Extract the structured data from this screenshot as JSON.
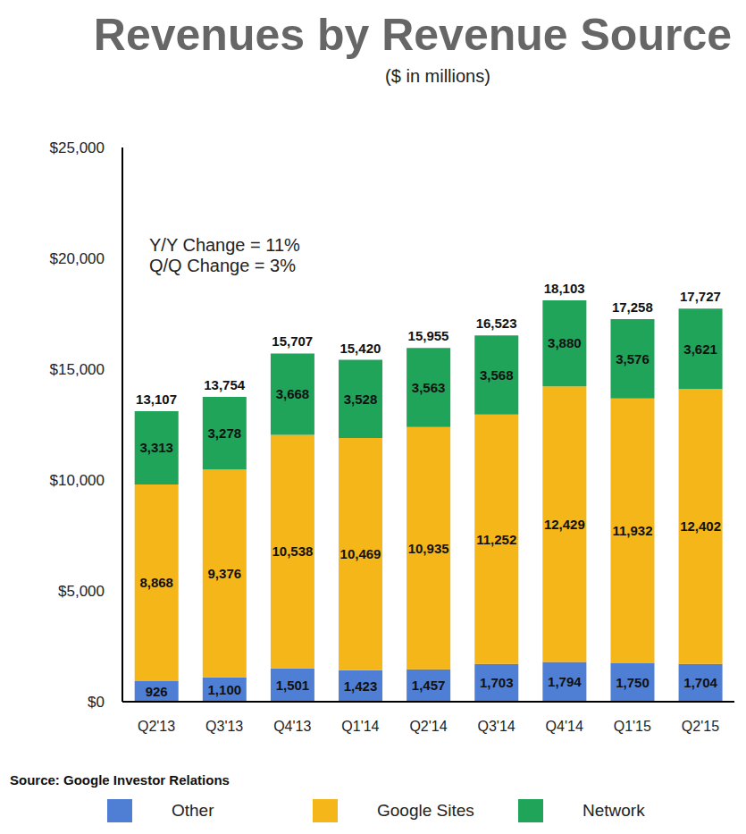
{
  "chart_data": {
    "type": "bar",
    "title": "Revenues by Revenue Source",
    "subtitle": "($ in millions)",
    "annotations": [
      "Y/Y Change = 11%",
      "Q/Q Change = 3%"
    ],
    "source": "Source: Google Investor Relations",
    "categories": [
      "Q2'13",
      "Q3'13",
      "Q4'13",
      "Q1'14",
      "Q2'14",
      "Q3'14",
      "Q4'14",
      "Q1'15",
      "Q2'15"
    ],
    "series": [
      {
        "name": "Other",
        "color": "#4f7fd4",
        "values": [
          926,
          1100,
          1501,
          1423,
          1457,
          1703,
          1794,
          1750,
          1704
        ],
        "value_labels": [
          "926",
          "1,100",
          "1,501",
          "1,423",
          "1,457",
          "1,703",
          "1,794",
          "1,750",
          "1,704"
        ]
      },
      {
        "name": "Google Sites",
        "color": "#f5b619",
        "values": [
          8868,
          9376,
          10538,
          10469,
          10935,
          11252,
          12429,
          11932,
          12402
        ],
        "value_labels": [
          "8,868",
          "9,376",
          "10,538",
          "10,469",
          "10,935",
          "11,252",
          "12,429",
          "11,932",
          "12,402"
        ]
      },
      {
        "name": "Network",
        "color": "#1fa45a",
        "values": [
          3313,
          3278,
          3668,
          3528,
          3563,
          3568,
          3880,
          3576,
          3621
        ],
        "value_labels": [
          "3,313",
          "3,278",
          "3,668",
          "3,528",
          "3,563",
          "3,568",
          "3,880",
          "3,576",
          "3,621"
        ]
      }
    ],
    "totals": [
      13107,
      13754,
      15707,
      15420,
      15955,
      16523,
      18103,
      17258,
      17727
    ],
    "total_labels": [
      "13,107",
      "13,754",
      "15,707",
      "15,420",
      "15,955",
      "16,523",
      "18,103",
      "17,258",
      "17,727"
    ],
    "ylim": [
      0,
      25000
    ],
    "yticks": [
      {
        "value": 0,
        "label": "$0"
      },
      {
        "value": 5000,
        "label": "$5,000"
      },
      {
        "value": 10000,
        "label": "$10,000"
      },
      {
        "value": 15000,
        "label": "$15,000"
      },
      {
        "value": 20000,
        "label": "$20,000"
      },
      {
        "value": 25000,
        "label": "$25,000"
      }
    ],
    "stacked": true,
    "data_labels": true,
    "grid": false,
    "legend": "bottom"
  }
}
